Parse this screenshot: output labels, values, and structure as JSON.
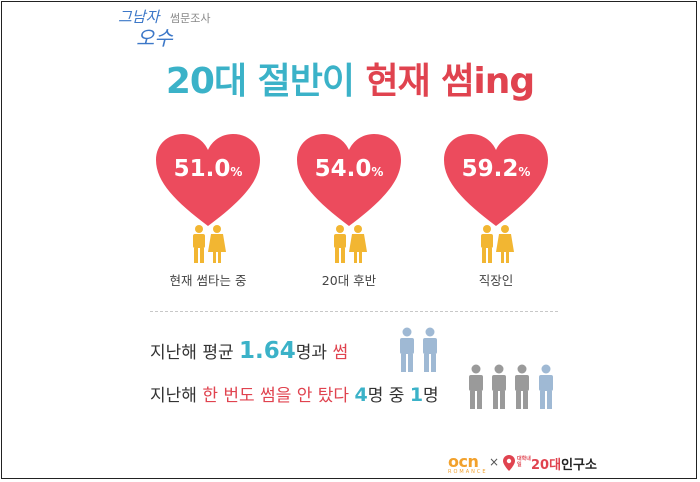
{
  "logo": {
    "script_top": "그남자",
    "script_bottom": "오수",
    "subtitle": "썸문조사"
  },
  "headline": {
    "part1": "20대 절반이",
    "part2": "현재 썸ing"
  },
  "stats": [
    {
      "value": "51.0",
      "unit": "%",
      "label": "현재 썸타는 중"
    },
    {
      "value": "54.0",
      "unit": "%",
      "label": "20대 후반"
    },
    {
      "value": "59.2",
      "unit": "%",
      "label": "직장인"
    }
  ],
  "facts": {
    "line1": {
      "pre": "지난해 평균 ",
      "number": "1.64",
      "mid": "명과 ",
      "accent": "썸"
    },
    "line2": {
      "pre": "지난해 ",
      "accent": "한 번도 썸을 안 탔다",
      "gap": " ",
      "num1": "4",
      "mid": "명 중 ",
      "num2": "1",
      "post": "명"
    }
  },
  "footer": {
    "ocn": "ocn",
    "ocn_sub": "ROMANCE",
    "times": "×",
    "brand_prefix": "대학내일",
    "brand_20": "20대",
    "brand_rest": "인구소"
  },
  "colors": {
    "heart": "#ec4b5d",
    "teal": "#3bb2c8",
    "red": "#e0434f",
    "person_gold": "#f2b632",
    "person_blue": "#9fb9d4",
    "person_gray": "#9a9a9a",
    "ocn_orange": "#f2a12c"
  }
}
